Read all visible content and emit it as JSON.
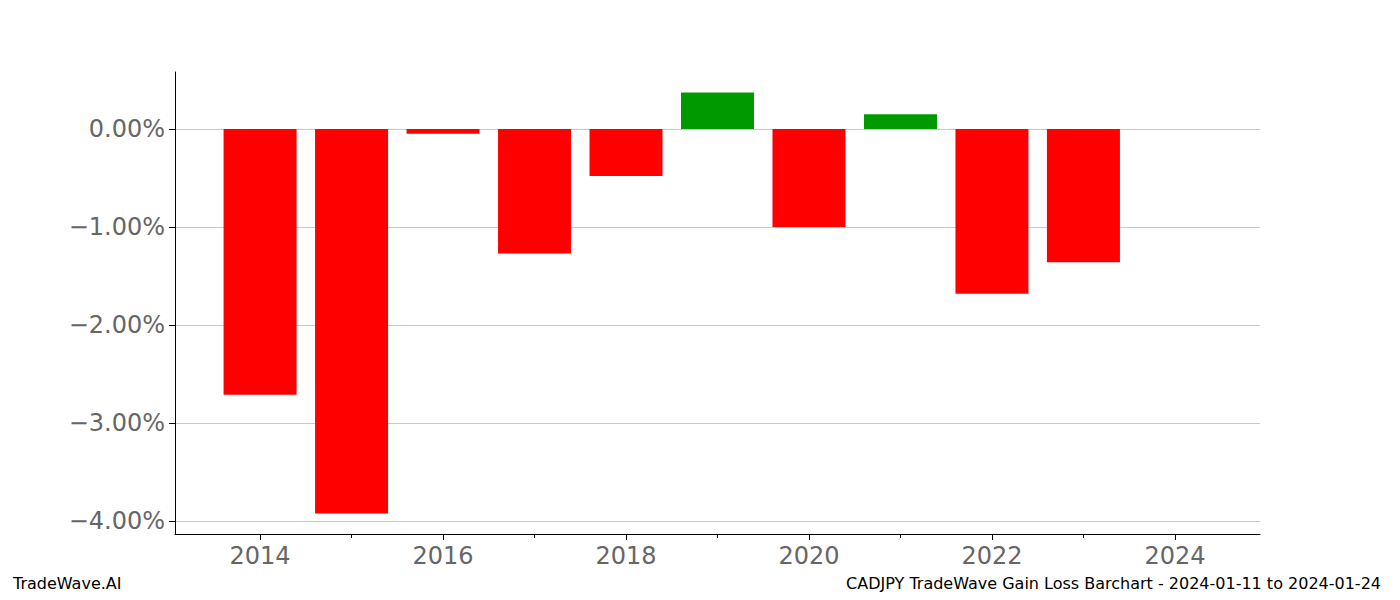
{
  "chart_data": {
    "type": "bar",
    "title": "CADJPY TradeWave Gain Loss Barchart - 2024-01-11 to 2024-01-24",
    "annotations": [
      "TradeWave.AI"
    ],
    "x": [
      2014,
      2015,
      2016,
      2017,
      2018,
      2019,
      2020,
      2021,
      2022,
      2023
    ],
    "values": [
      -2.71,
      -3.92,
      -0.05,
      -1.27,
      -0.48,
      0.37,
      -1.0,
      0.15,
      -1.68,
      -1.36
    ],
    "colors": [
      "#ff0000",
      "#ff0000",
      "#ff0000",
      "#ff0000",
      "#ff0000",
      "#009900",
      "#ff0000",
      "#009900",
      "#ff0000",
      "#ff0000"
    ],
    "xlim": [
      2013.07,
      2024.93
    ],
    "xticks": [
      2014,
      2016,
      2018,
      2020,
      2022,
      2024
    ],
    "ylim": [
      -4.13,
      0.58
    ],
    "yticks": [
      {
        "value": 0,
        "label": "0.00%"
      },
      {
        "value": -1,
        "label": "−1.00%"
      },
      {
        "value": -2,
        "label": "−2.00%"
      },
      {
        "value": -3,
        "label": "−3.00%"
      },
      {
        "value": -4,
        "label": "−4.00%"
      }
    ],
    "grid": true
  }
}
